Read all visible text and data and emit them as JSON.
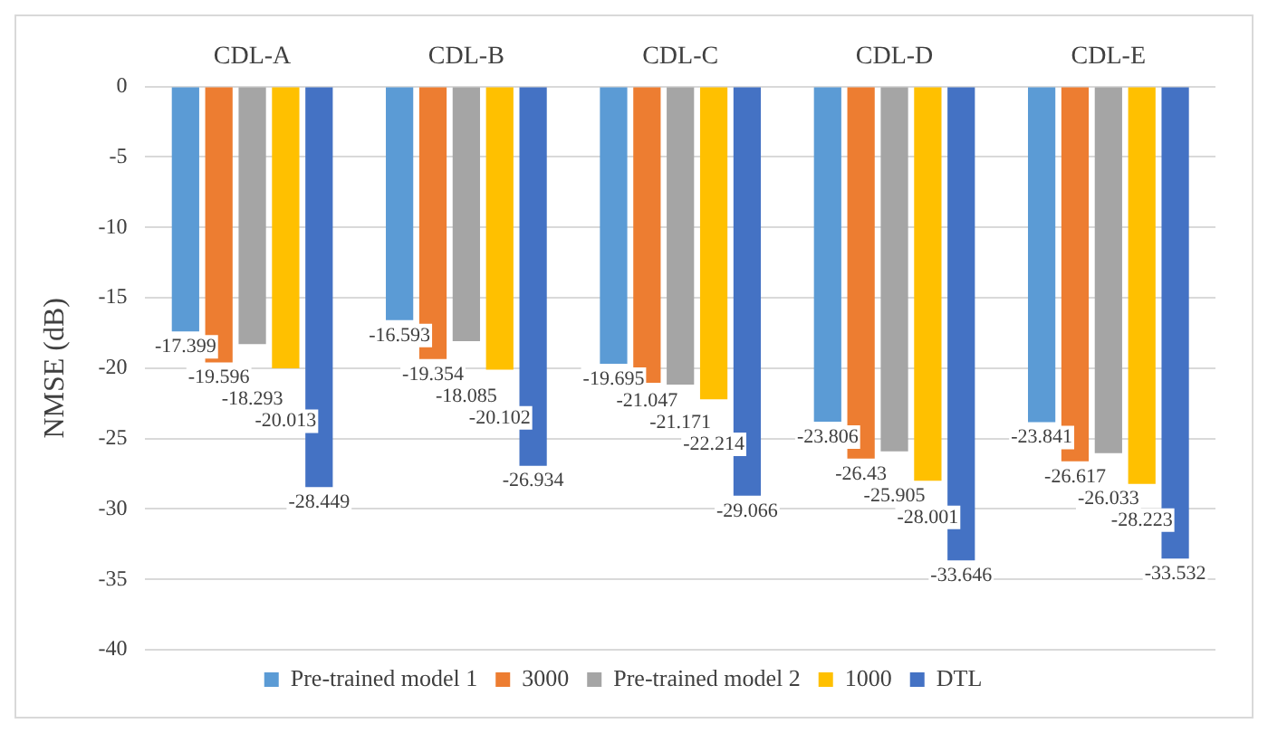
{
  "chart_data": {
    "type": "bar",
    "ylabel": "NMSE (dB)",
    "categories": [
      "CDL-A",
      "CDL-B",
      "CDL-C",
      "CDL-D",
      "CDL-E"
    ],
    "series": [
      {
        "name": "Pre-trained model 1",
        "color": "#5b9bd5",
        "values": [
          -17.399,
          -16.593,
          -19.695,
          -23.806,
          -23.841
        ]
      },
      {
        "name": "3000",
        "color": "#ed7d31",
        "values": [
          -19.596,
          -19.354,
          -21.047,
          -26.43,
          -26.617
        ]
      },
      {
        "name": "Pre-trained model 2",
        "color": "#a5a5a5",
        "values": [
          -18.293,
          -18.085,
          -21.171,
          -25.905,
          -26.033
        ]
      },
      {
        "name": "1000",
        "color": "#ffc000",
        "values": [
          -20.013,
          -20.102,
          -22.214,
          -28.001,
          -28.223
        ]
      },
      {
        "name": "DTL",
        "color": "#4472c4",
        "values": [
          -28.449,
          -26.934,
          -29.066,
          -33.646,
          -33.532
        ]
      }
    ],
    "ylim": [
      -40,
      0
    ],
    "yticks": [
      -40,
      -35,
      -30,
      -25,
      -20,
      -15,
      -10,
      -5,
      0
    ],
    "grid": "y",
    "legend": "bottom",
    "data_labels": true
  }
}
